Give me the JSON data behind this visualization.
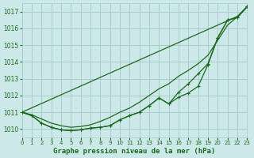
{
  "background_color": "#cce8e8",
  "grid_color": "#aacccc",
  "line_color": "#1a6b1a",
  "marker_color": "#1a6b1a",
  "title": "Graphe pression niveau de la mer (hPa)",
  "xlim": [
    0,
    23
  ],
  "ylim": [
    1009.5,
    1017.5
  ],
  "yticks": [
    1010,
    1011,
    1012,
    1013,
    1014,
    1015,
    1016,
    1017
  ],
  "xticks": [
    0,
    1,
    2,
    3,
    4,
    5,
    6,
    7,
    8,
    9,
    10,
    11,
    12,
    13,
    14,
    15,
    16,
    17,
    18,
    19,
    20,
    21,
    22,
    23
  ],
  "series": {
    "smooth_line": [
      1011.0,
      1011.26,
      1011.52,
      1011.78,
      1012.04,
      1012.3,
      1012.56,
      1012.82,
      1013.08,
      1013.34,
      1013.6,
      1013.86,
      1014.12,
      1014.38,
      1014.64,
      1014.9,
      1015.16,
      1015.42,
      1015.68,
      1015.94,
      1016.2,
      1016.46,
      1016.72,
      1017.3
    ],
    "marked_line1": [
      1011.0,
      1010.8,
      1010.35,
      1010.1,
      1009.95,
      1009.9,
      1009.95,
      1010.05,
      1010.1,
      1010.2,
      1010.55,
      1010.8,
      1011.0,
      1011.4,
      1011.85,
      1011.5,
      1011.9,
      1012.15,
      1012.55,
      1013.85,
      1015.45,
      1016.5,
      1016.65,
      1017.3
    ],
    "marked_line2": [
      1011.0,
      1010.8,
      1010.35,
      1010.1,
      1009.95,
      1009.9,
      1009.95,
      1010.05,
      1010.1,
      1010.2,
      1010.55,
      1010.8,
      1011.0,
      1011.4,
      1011.85,
      1011.5,
      1012.2,
      1012.7,
      1013.3,
      1013.9,
      1015.45,
      1016.5,
      1016.65,
      1017.3
    ],
    "smooth_line2": [
      1011.0,
      1010.85,
      1010.6,
      1010.35,
      1010.2,
      1010.1,
      1010.15,
      1010.25,
      1010.45,
      1010.7,
      1011.0,
      1011.25,
      1011.6,
      1012.0,
      1012.4,
      1012.7,
      1013.15,
      1013.5,
      1013.9,
      1014.4,
      1015.3,
      1016.2,
      1016.7,
      1017.3
    ]
  },
  "marker_style": "+"
}
